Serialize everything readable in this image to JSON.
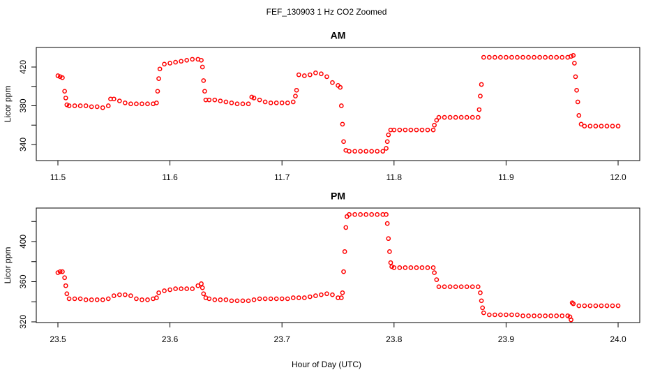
{
  "title": "FEF_130903  1 Hz CO2 Zoomed",
  "xlabel": "Hour of Day (UTC)",
  "chart_data": [
    {
      "type": "scatter",
      "title": "AM",
      "ylabel": "Licor ppm",
      "color": "#ff0000",
      "xlim": [
        11.4807,
        12.0193
      ],
      "xticks": [
        11.5,
        11.6,
        11.7,
        11.8,
        11.9,
        {
          "value": 12,
          "label": "12.0"
        }
      ],
      "ylim": [
        323.4,
        440.2
      ],
      "yticks": [
        340,
        360,
        380,
        400,
        420
      ],
      "ytick_label_every": 2,
      "x": [
        11.5,
        11.502,
        11.504,
        11.506,
        11.507,
        11.508,
        11.51,
        11.515,
        11.52,
        11.525,
        11.53,
        11.535,
        11.54,
        11.545,
        11.547,
        11.55,
        11.555,
        11.56,
        11.565,
        11.57,
        11.575,
        11.58,
        11.585,
        11.588,
        11.589,
        11.59,
        11.591,
        11.595,
        11.6,
        11.605,
        11.61,
        11.615,
        11.62,
        11.625,
        11.628,
        11.629,
        11.63,
        11.631,
        11.632,
        11.635,
        11.64,
        11.645,
        11.65,
        11.655,
        11.66,
        11.665,
        11.67,
        11.673,
        11.675,
        11.68,
        11.685,
        11.69,
        11.695,
        11.7,
        11.705,
        11.71,
        11.712,
        11.713,
        11.715,
        11.72,
        11.725,
        11.73,
        11.735,
        11.74,
        11.745,
        11.75,
        11.752,
        11.753,
        11.754,
        11.755,
        11.757,
        11.76,
        11.765,
        11.77,
        11.775,
        11.78,
        11.785,
        11.79,
        11.793,
        11.794,
        11.795,
        11.797,
        11.8,
        11.805,
        11.81,
        11.815,
        11.82,
        11.825,
        11.83,
        11.835,
        11.836,
        11.838,
        11.84,
        11.845,
        11.85,
        11.855,
        11.86,
        11.865,
        11.87,
        11.875,
        11.876,
        11.877,
        11.878,
        11.88,
        11.885,
        11.89,
        11.895,
        11.9,
        11.905,
        11.91,
        11.915,
        11.92,
        11.925,
        11.93,
        11.935,
        11.94,
        11.945,
        11.95,
        11.955,
        11.958,
        11.96,
        11.961,
        11.962,
        11.963,
        11.964,
        11.965,
        11.967,
        11.97,
        11.975,
        11.98,
        11.985,
        11.99,
        11.995,
        12.0
      ],
      "values": [
        411,
        410,
        409,
        395,
        388,
        381,
        380,
        380,
        380,
        380,
        379,
        379,
        378,
        380,
        387,
        387,
        385,
        383,
        382,
        382,
        382,
        382,
        382,
        383,
        395,
        408,
        418,
        423,
        424,
        425,
        426,
        427,
        428,
        428,
        427,
        420,
        406,
        395,
        386,
        386,
        386,
        385,
        384,
        383,
        382,
        382,
        382,
        389,
        388,
        386,
        384,
        383,
        383,
        383,
        383,
        384,
        390,
        396,
        412,
        411,
        412,
        414,
        413,
        410,
        404,
        401,
        399,
        380,
        361,
        343,
        334,
        333,
        333,
        333,
        333,
        333,
        333,
        333,
        336,
        343,
        350,
        355,
        355,
        355,
        355,
        355,
        355,
        355,
        355,
        355,
        360,
        365,
        368,
        368,
        368,
        368,
        368,
        368,
        368,
        368,
        376,
        390,
        402,
        430,
        430,
        430,
        430,
        430,
        430,
        430,
        430,
        430,
        430,
        430,
        430,
        430,
        430,
        430,
        430,
        431,
        432,
        424,
        410,
        396,
        384,
        370,
        361,
        359,
        359,
        359,
        359,
        359,
        359,
        359
      ]
    },
    {
      "type": "scatter",
      "title": "PM",
      "ylabel": "Licor ppm",
      "color": "#ff0000",
      "xlim": [
        23.4807,
        24.0193
      ],
      "xticks": [
        23.5,
        23.6,
        23.7,
        23.8,
        23.9,
        {
          "value": 24,
          "label": "24.0"
        }
      ],
      "ylim": [
        319.3,
        433.4
      ],
      "yticks": [
        320,
        340,
        360,
        380,
        400,
        420
      ],
      "ytick_label_every": 2,
      "x": [
        23.5,
        23.502,
        23.504,
        23.506,
        23.507,
        23.508,
        23.51,
        23.515,
        23.52,
        23.525,
        23.53,
        23.535,
        23.54,
        23.545,
        23.55,
        23.555,
        23.56,
        23.565,
        23.57,
        23.575,
        23.58,
        23.585,
        23.588,
        23.59,
        23.595,
        23.6,
        23.605,
        23.61,
        23.615,
        23.62,
        23.625,
        23.628,
        23.629,
        23.63,
        23.632,
        23.635,
        23.64,
        23.645,
        23.65,
        23.655,
        23.66,
        23.665,
        23.67,
        23.675,
        23.68,
        23.685,
        23.69,
        23.695,
        23.7,
        23.705,
        23.71,
        23.715,
        23.72,
        23.725,
        23.73,
        23.735,
        23.74,
        23.745,
        23.75,
        23.753,
        23.754,
        23.755,
        23.756,
        23.757,
        23.758,
        23.76,
        23.765,
        23.77,
        23.775,
        23.78,
        23.785,
        23.79,
        23.793,
        23.794,
        23.795,
        23.796,
        23.797,
        23.798,
        23.8,
        23.805,
        23.81,
        23.815,
        23.82,
        23.825,
        23.83,
        23.835,
        23.836,
        23.838,
        23.84,
        23.845,
        23.85,
        23.855,
        23.86,
        23.865,
        23.87,
        23.875,
        23.877,
        23.878,
        23.879,
        23.88,
        23.885,
        23.89,
        23.895,
        23.9,
        23.905,
        23.91,
        23.915,
        23.92,
        23.925,
        23.93,
        23.935,
        23.94,
        23.945,
        23.95,
        23.955,
        23.957,
        23.958,
        23.959,
        23.96,
        23.965,
        23.97,
        23.975,
        23.98,
        23.985,
        23.99,
        23.995,
        24.0
      ],
      "values": [
        369,
        370,
        370,
        364,
        356,
        348,
        343,
        343,
        343,
        342,
        342,
        342,
        342,
        343,
        346,
        347,
        347,
        346,
        343,
        342,
        342,
        343,
        344,
        349,
        351,
        352,
        353,
        353,
        353,
        353,
        356,
        358,
        354,
        348,
        344,
        343,
        342,
        342,
        342,
        341,
        341,
        341,
        341,
        342,
        343,
        343,
        343,
        343,
        343,
        343,
        344,
        344,
        344,
        345,
        346,
        347,
        348,
        347,
        344,
        344,
        349,
        370,
        390,
        414,
        425,
        427,
        427,
        427,
        427,
        427,
        427,
        427,
        427,
        418,
        403,
        390,
        379,
        375,
        374,
        374,
        374,
        374,
        374,
        374,
        374,
        374,
        369,
        362,
        355,
        355,
        355,
        355,
        355,
        355,
        355,
        355,
        349,
        341,
        334,
        329,
        327,
        327,
        327,
        327,
        327,
        327,
        326,
        326,
        326,
        326,
        326,
        326,
        326,
        326,
        326,
        325,
        322,
        339,
        338,
        336,
        336,
        336,
        336,
        336,
        336,
        336,
        336
      ]
    }
  ]
}
